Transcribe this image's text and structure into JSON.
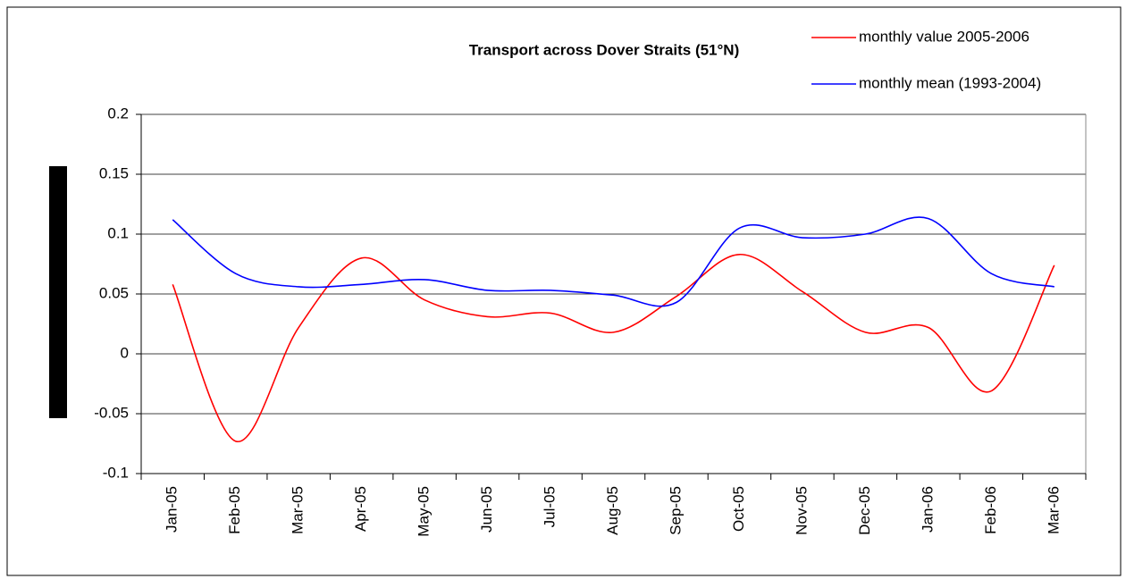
{
  "chart_data": {
    "type": "line",
    "title": "Transport across Dover Straits (51°N)",
    "categories": [
      "Jan-05",
      "Feb-05",
      "Mar-05",
      "Apr-05",
      "May-05",
      "Jun-05",
      "Jul-05",
      "Aug-05",
      "Sep-05",
      "Oct-05",
      "Nov-05",
      "Dec-05",
      "Jan-06",
      "Feb-06",
      "Mar-06"
    ],
    "series": [
      {
        "name": "monthly value 2005-2006",
        "color": "#ff0000",
        "values": [
          0.058,
          -0.073,
          0.022,
          0.08,
          0.045,
          0.031,
          0.034,
          0.018,
          0.048,
          0.083,
          0.052,
          0.018,
          0.022,
          -0.031,
          0.074
        ]
      },
      {
        "name": "monthly mean (1993-2004)",
        "color": "#0000ff",
        "values": [
          0.112,
          0.067,
          0.056,
          0.058,
          0.062,
          0.053,
          0.053,
          0.049,
          0.043,
          0.105,
          0.097,
          0.1,
          0.113,
          0.067,
          0.056
        ]
      }
    ],
    "ylim": [
      -0.1,
      0.2
    ],
    "yticks": [
      -0.1,
      -0.05,
      0,
      0.05,
      0.1,
      0.15,
      0.2
    ],
    "grid": true,
    "legend": "top-right"
  }
}
